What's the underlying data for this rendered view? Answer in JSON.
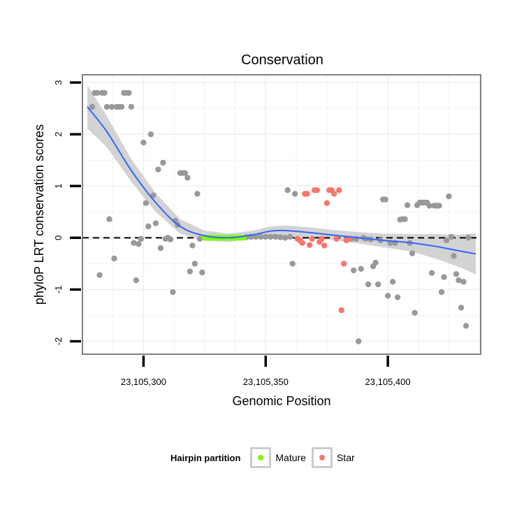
{
  "chart_data": {
    "type": "scatter",
    "title": "Conservation",
    "xlabel": "Genomic Position",
    "ylabel": "phyloP LRT conservation scores",
    "xlim": [
      23105275,
      23105438
    ],
    "ylim": [
      -2.25,
      3.15
    ],
    "x_ticks": [
      {
        "value": 23105300,
        "label": "23,105,300"
      },
      {
        "value": 23105350,
        "label": "23,105,350"
      },
      {
        "value": 23105400,
        "label": "23,105,400"
      }
    ],
    "y_ticks": [
      {
        "value": -2,
        "label": "-2"
      },
      {
        "value": -1,
        "label": "-1"
      },
      {
        "value": 0,
        "label": "0"
      },
      {
        "value": 1,
        "label": "1"
      },
      {
        "value": 2,
        "label": "2"
      },
      {
        "value": 3,
        "label": "3"
      }
    ],
    "reference_line": {
      "y": 0,
      "style": "dashed"
    },
    "legend": {
      "title": "Hairpin partition",
      "position": "bottom",
      "entries": [
        {
          "label": "Mature",
          "color": "#7cfc00"
        },
        {
          "label": "Star",
          "color": "#f8766d"
        }
      ]
    },
    "colors": {
      "other": "#999999",
      "mature": "#7cfc00",
      "star": "#f8766d",
      "smooth": "#3366ff",
      "band": "#d3d3d3"
    },
    "series": [
      {
        "name": "Other",
        "points": [
          [
            23105279,
            2.53
          ],
          [
            23105280,
            2.8
          ],
          [
            23105281,
            2.8
          ],
          [
            23105282,
            -0.72
          ],
          [
            23105283,
            2.8
          ],
          [
            23105284,
            2.8
          ],
          [
            23105285,
            2.53
          ],
          [
            23105286,
            0.36
          ],
          [
            23105287,
            2.53
          ],
          [
            23105288,
            -0.4
          ],
          [
            23105289,
            2.53
          ],
          [
            23105290,
            2.53
          ],
          [
            23105291,
            2.53
          ],
          [
            23105292,
            2.8
          ],
          [
            23105293,
            2.8
          ],
          [
            23105294,
            2.8
          ],
          [
            23105295,
            2.53
          ],
          [
            23105296,
            -0.1
          ],
          [
            23105297,
            -0.82
          ],
          [
            23105298,
            -0.12
          ],
          [
            23105299,
            -0.02
          ],
          [
            23105300,
            1.84
          ],
          [
            23105301,
            0.67
          ],
          [
            23105302,
            0.22
          ],
          [
            23105303,
            2.0
          ],
          [
            23105304,
            0.82
          ],
          [
            23105305,
            0.28
          ],
          [
            23105306,
            1.32
          ],
          [
            23105307,
            -0.2
          ],
          [
            23105308,
            1.45
          ],
          [
            23105309,
            -0.02
          ],
          [
            23105310,
            0.0
          ],
          [
            23105311,
            -0.03
          ],
          [
            23105312,
            -1.05
          ],
          [
            23105313,
            0.33
          ],
          [
            23105314,
            0.25
          ],
          [
            23105315,
            1.25
          ],
          [
            23105316,
            1.25
          ],
          [
            23105317,
            1.25
          ],
          [
            23105318,
            1.16
          ],
          [
            23105319,
            -0.65
          ],
          [
            23105320,
            -0.15
          ],
          [
            23105321,
            -0.5
          ],
          [
            23105322,
            0.85
          ],
          [
            23105323,
            -0.02
          ],
          [
            23105324,
            -0.67
          ],
          [
            23105342,
            0.01
          ],
          [
            23105344,
            0.02
          ],
          [
            23105346,
            0.02
          ],
          [
            23105348,
            0.02
          ],
          [
            23105350,
            0.02
          ],
          [
            23105352,
            0.02
          ],
          [
            23105354,
            0.02
          ],
          [
            23105356,
            0.01
          ],
          [
            23105358,
            0.0
          ],
          [
            23105359,
            0.92
          ],
          [
            23105360,
            0.02
          ],
          [
            23105361,
            -0.5
          ],
          [
            23105362,
            0.85
          ],
          [
            23105385,
            -0.02
          ],
          [
            23105386,
            -0.63
          ],
          [
            23105387,
            -0.02
          ],
          [
            23105388,
            -2.0
          ],
          [
            23105389,
            -0.6
          ],
          [
            23105390,
            0.0
          ],
          [
            23105391,
            -0.02
          ],
          [
            23105392,
            -0.9
          ],
          [
            23105393,
            -0.03
          ],
          [
            23105394,
            -0.55
          ],
          [
            23105395,
            -0.48
          ],
          [
            23105396,
            -0.9
          ],
          [
            23105397,
            -0.05
          ],
          [
            23105398,
            0.74
          ],
          [
            23105399,
            0.74
          ],
          [
            23105400,
            -1.12
          ],
          [
            23105401,
            -0.1
          ],
          [
            23105402,
            -0.85
          ],
          [
            23105403,
            -0.1
          ],
          [
            23105404,
            -1.15
          ],
          [
            23105405,
            0.35
          ],
          [
            23105406,
            0.36
          ],
          [
            23105407,
            0.36
          ],
          [
            23105408,
            0.63
          ],
          [
            23105409,
            -0.1
          ],
          [
            23105410,
            -0.3
          ],
          [
            23105411,
            -1.45
          ],
          [
            23105412,
            0.63
          ],
          [
            23105413,
            0.68
          ],
          [
            23105414,
            0.68
          ],
          [
            23105415,
            0.68
          ],
          [
            23105416,
            0.68
          ],
          [
            23105417,
            0.62
          ],
          [
            23105418,
            -0.68
          ],
          [
            23105419,
            0.62
          ],
          [
            23105420,
            0.62
          ],
          [
            23105421,
            0.62
          ],
          [
            23105422,
            -1.05
          ],
          [
            23105423,
            -0.76
          ],
          [
            23105424,
            -0.05
          ],
          [
            23105425,
            0.8
          ],
          [
            23105426,
            0.02
          ],
          [
            23105427,
            -0.35
          ],
          [
            23105428,
            -0.7
          ],
          [
            23105429,
            -0.82
          ],
          [
            23105430,
            -1.35
          ],
          [
            23105431,
            -0.85
          ],
          [
            23105432,
            -1.7
          ],
          [
            23105433,
            0.0
          ]
        ]
      },
      {
        "name": "Mature",
        "points": [
          [
            23105325,
            0.0
          ],
          [
            23105326,
            0.0
          ],
          [
            23105327,
            0.0
          ],
          [
            23105328,
            0.0
          ],
          [
            23105329,
            0.0
          ],
          [
            23105330,
            0.0
          ],
          [
            23105331,
            0.0
          ],
          [
            23105332,
            0.0
          ],
          [
            23105333,
            0.0
          ],
          [
            23105334,
            0.0
          ],
          [
            23105335,
            0.0
          ],
          [
            23105336,
            0.0
          ],
          [
            23105337,
            0.0
          ],
          [
            23105338,
            0.0
          ],
          [
            23105339,
            0.0
          ],
          [
            23105340,
            0.0
          ],
          [
            23105341,
            0.0
          ]
        ]
      },
      {
        "name": "Star",
        "points": [
          [
            23105363,
            -0.02
          ],
          [
            23105364,
            -0.05
          ],
          [
            23105365,
            -0.1
          ],
          [
            23105366,
            0.85
          ],
          [
            23105367,
            0.85
          ],
          [
            23105368,
            -0.14
          ],
          [
            23105369,
            -0.02
          ],
          [
            23105370,
            0.92
          ],
          [
            23105371,
            0.92
          ],
          [
            23105372,
            -0.08
          ],
          [
            23105373,
            -0.02
          ],
          [
            23105374,
            -0.15
          ],
          [
            23105375,
            0.67
          ],
          [
            23105376,
            0.92
          ],
          [
            23105377,
            0.92
          ],
          [
            23105378,
            0.85
          ],
          [
            23105379,
            -0.02
          ],
          [
            23105380,
            0.92
          ],
          [
            23105381,
            -1.4
          ],
          [
            23105382,
            -0.5
          ],
          [
            23105383,
            -0.05
          ],
          [
            23105384,
            -0.02
          ]
        ]
      }
    ],
    "smooth": {
      "x": [
        23105277,
        23105285,
        23105295,
        23105305,
        23105315,
        23105325,
        23105335,
        23105345,
        23105352,
        23105358,
        23105368,
        23105378,
        23105388,
        23105398,
        23105410,
        23105420,
        23105430,
        23105436
      ],
      "y": [
        2.53,
        2.05,
        1.3,
        0.68,
        0.22,
        0.04,
        0.0,
        0.06,
        0.13,
        0.14,
        0.1,
        0.05,
        0.0,
        -0.05,
        -0.1,
        -0.17,
        -0.26,
        -0.31
      ],
      "band_halfwidth": [
        0.42,
        0.3,
        0.22,
        0.18,
        0.14,
        0.1,
        0.08,
        0.08,
        0.09,
        0.1,
        0.1,
        0.1,
        0.11,
        0.13,
        0.17,
        0.24,
        0.32,
        0.4
      ]
    }
  }
}
